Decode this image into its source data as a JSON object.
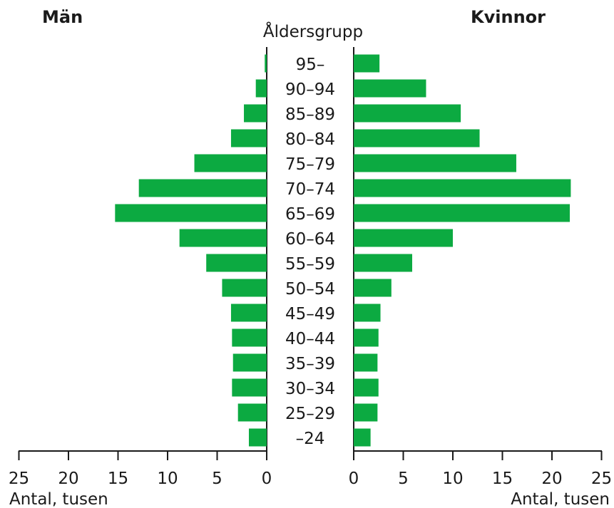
{
  "chart_data": {
    "type": "bar",
    "orientation": "horizontal",
    "layout": "population-pyramid",
    "title": "",
    "left_title": "Män",
    "right_title": "Kvinnor",
    "center_label": "Åldersgrupp",
    "xlabel_left": "Antal, tusen",
    "xlabel_right": "Antal, tusen",
    "xlim": [
      0,
      25
    ],
    "x_ticks": [
      0,
      5,
      10,
      15,
      20,
      25
    ],
    "categories": [
      "95–",
      "90–94",
      "85–89",
      "80–84",
      "75–79",
      "70–74",
      "65–69",
      "60–64",
      "55–59",
      "50–54",
      "45–49",
      "40–44",
      "35–39",
      "30–34",
      "25–29",
      "–24"
    ],
    "series": [
      {
        "name": "Män",
        "side": "left",
        "values": [
          0.2,
          1.1,
          2.3,
          3.6,
          7.3,
          12.9,
          15.3,
          8.8,
          6.1,
          4.5,
          3.6,
          3.5,
          3.4,
          3.5,
          2.9,
          1.8
        ]
      },
      {
        "name": "Kvinnor",
        "side": "right",
        "values": [
          2.6,
          7.3,
          10.8,
          12.7,
          16.4,
          21.9,
          21.8,
          10.0,
          5.9,
          3.8,
          2.7,
          2.5,
          2.4,
          2.5,
          2.4,
          1.7
        ]
      }
    ],
    "bar_color": "#0caa41",
    "axis_color": "#1a1a1a",
    "grid": false,
    "legend": "none"
  }
}
